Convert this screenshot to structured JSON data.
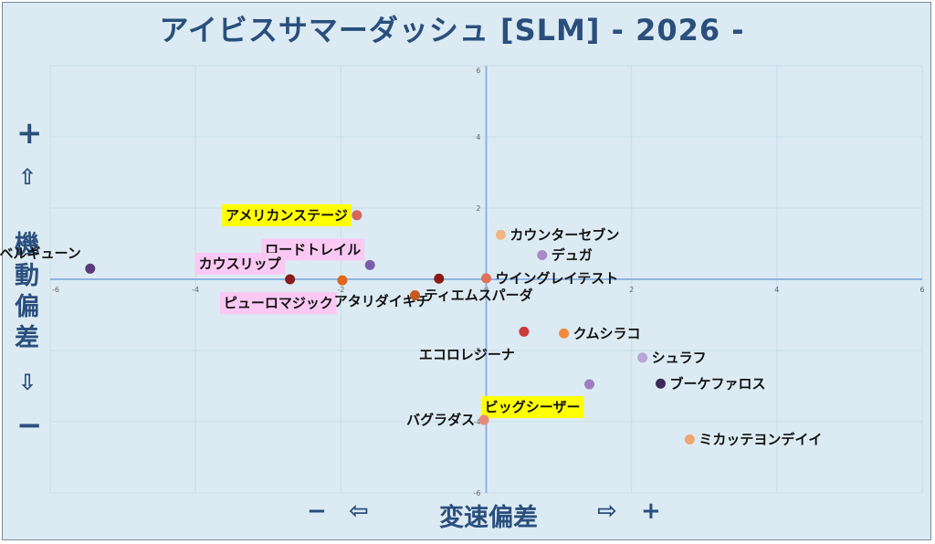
{
  "title": "アイビスサマーダッシュ [SLM]  - 2026 -",
  "y_side": {
    "plus": "+",
    "up_arrow": "⇧",
    "label_chars": [
      "機",
      "動",
      "偏",
      "差"
    ],
    "down_arrow": "⇩",
    "minus": "−"
  },
  "x_side": {
    "minus": "−",
    "left_arrow": "⇦",
    "label": "変速偏差",
    "right_arrow": "⇨",
    "plus": "+"
  },
  "colors": {
    "axis": "#8fb3e3",
    "grid": "#c8dce8",
    "highlight_yellow": "#ffff00",
    "highlight_pink": "#f9c9f3"
  },
  "chart_data": {
    "type": "scatter",
    "xlim": [
      -6,
      6
    ],
    "ylim": [
      -6,
      6
    ],
    "x_ticks": [
      -6,
      -4,
      -2,
      0,
      2,
      4,
      6
    ],
    "y_ticks": [
      -6,
      -4,
      -2,
      0,
      2,
      4,
      6
    ],
    "grid": true,
    "points": [
      {
        "name": "ベルギューン",
        "x": -5.45,
        "y": 0.3,
        "color": "#5a3c7a",
        "label_side": "upper-left",
        "highlight": null
      },
      {
        "name": "アメリカンステージ",
        "x": -1.78,
        "y": 1.8,
        "color": "#d4685c",
        "label_side": "left",
        "highlight": "yellow"
      },
      {
        "name": "ロードトレイル",
        "x": -1.6,
        "y": 0.4,
        "color": "#7a5fa8",
        "label_side": "upper-left",
        "highlight": "pink"
      },
      {
        "name": "カウスリップ",
        "x": -2.7,
        "y": 0.0,
        "color": "#8b1a1a",
        "label_side": "upper-left",
        "highlight": "pink"
      },
      {
        "name": "ピューロマジック",
        "x": -1.98,
        "y": -0.03,
        "color": "#e0651b",
        "label_side": "lower-left",
        "highlight": "pink"
      },
      {
        "name": "アタリダイキチ",
        "x": -0.65,
        "y": 0.02,
        "color": "#8a1a14",
        "label_side": "lower-left",
        "highlight": null
      },
      {
        "name": "ティエムスパーダ",
        "x": -0.98,
        "y": -0.45,
        "color": "#c65a1e",
        "label_side": "right",
        "highlight": null
      },
      {
        "name": "ウイングレイテスト",
        "x": 0.0,
        "y": 0.03,
        "color": "#e07060",
        "label_side": "right",
        "highlight": null
      },
      {
        "name": "カウンターセブン",
        "x": 0.2,
        "y": 1.25,
        "color": "#f2b584",
        "label_side": "right",
        "highlight": null
      },
      {
        "name": "デュガ",
        "x": 0.77,
        "y": 0.68,
        "color": "#a98ac6",
        "label_side": "right",
        "highlight": null
      },
      {
        "name": "エコロレジーナ",
        "x": 0.52,
        "y": -1.47,
        "color": "#cc3a3a",
        "label_side": "lower-left",
        "highlight": null
      },
      {
        "name": "クムシラコ",
        "x": 1.07,
        "y": -1.52,
        "color": "#ef8a3e",
        "label_side": "right",
        "highlight": null
      },
      {
        "name": "シュラフ",
        "x": 2.15,
        "y": -2.2,
        "color": "#b8a6d8",
        "label_side": "right",
        "highlight": null
      },
      {
        "name": "ブーケファロス",
        "x": 2.4,
        "y": -2.93,
        "color": "#3e2a5a",
        "label_side": "right",
        "highlight": null
      },
      {
        "name": "ビッグシーザー",
        "x": 1.42,
        "y": -2.95,
        "color": "#9b7fc0",
        "label_side": "lower-left",
        "highlight": "yellow"
      },
      {
        "name": "バグラダス",
        "x": -0.03,
        "y": -3.95,
        "color": "#e58a7a",
        "label_side": "left",
        "highlight": null
      },
      {
        "name": "ミカッテヨンデイイ",
        "x": 2.8,
        "y": -4.5,
        "color": "#f0a56e",
        "label_side": "right",
        "highlight": null
      }
    ]
  }
}
